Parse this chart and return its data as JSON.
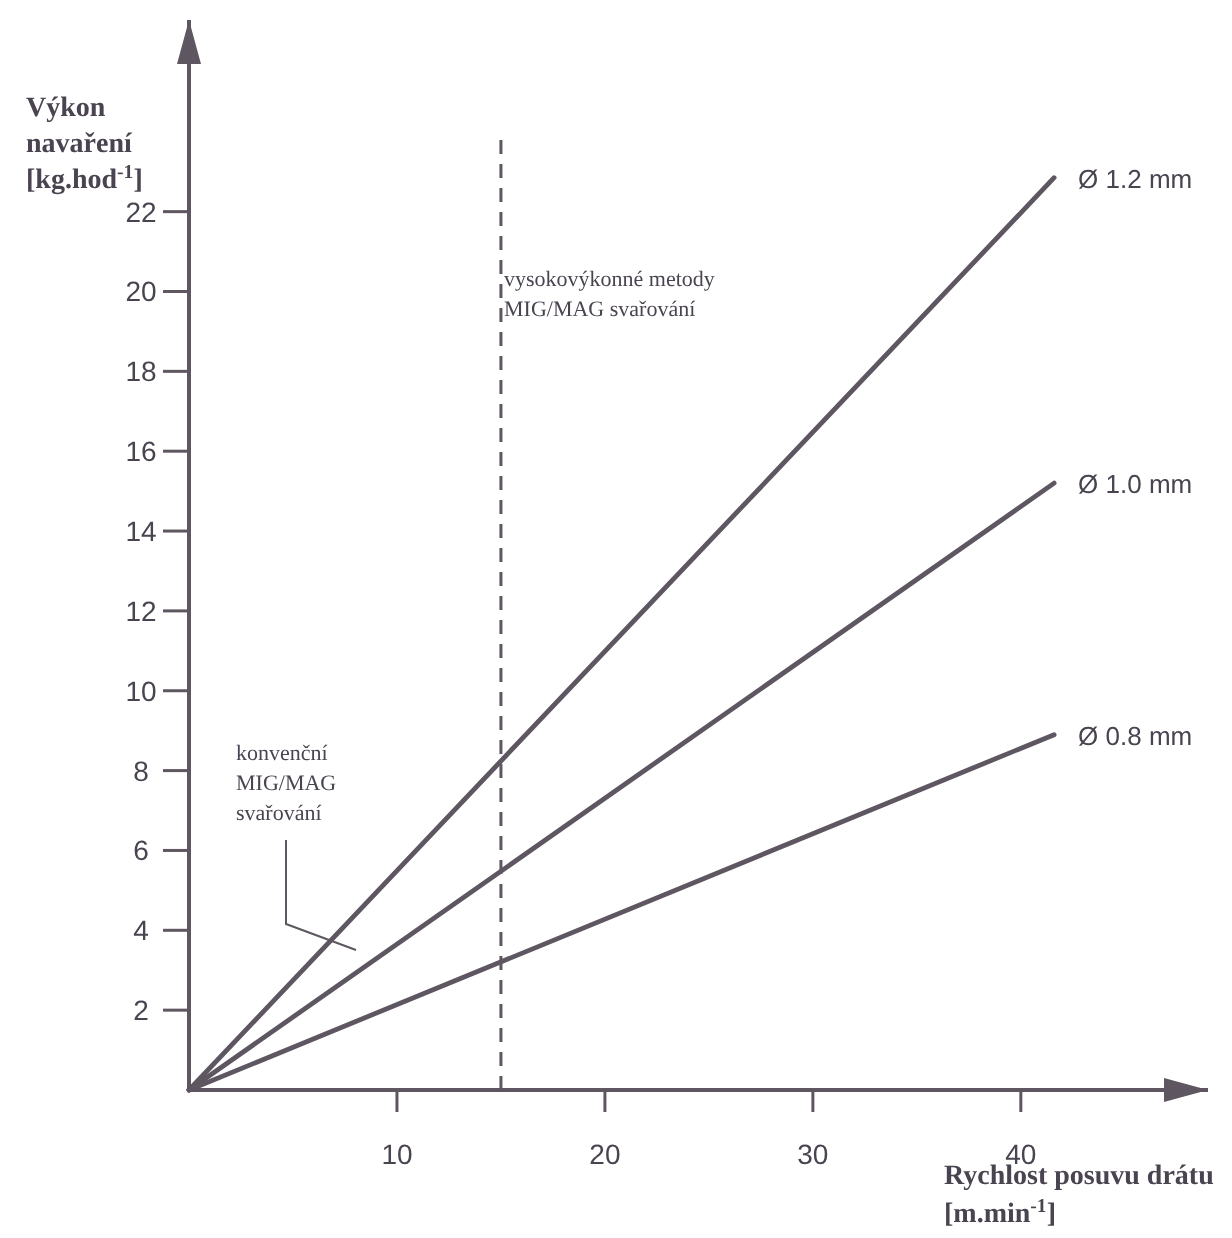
{
  "chart_data": {
    "type": "line",
    "xlabel": "Rychlost posuvu drátu\n[m.min$^{-1}$]",
    "ylabel": "Výkon\nnavaření\n[kg.hod$^{-1}$]",
    "xlim": [
      0,
      49
    ],
    "ylim": [
      0,
      26.8
    ],
    "xticks": [
      10,
      20,
      30,
      40
    ],
    "yticks": [
      2,
      4,
      6,
      8,
      10,
      12,
      14,
      16,
      18,
      20,
      22
    ],
    "grid": false,
    "legend": false,
    "marker": "none",
    "line_style": "solid",
    "x": [
      0,
      41.6
    ],
    "series": [
      {
        "name": "Ø 1.2 mm",
        "color": "#5e5660",
        "values": [
          0,
          22.85
        ]
      },
      {
        "name": "Ø 1.0 mm",
        "color": "#5e5660",
        "values": [
          0,
          15.2
        ]
      },
      {
        "name": "Ø 0.8 mm",
        "color": "#5e5660",
        "values": [
          0,
          8.9
        ]
      }
    ],
    "ref_lines": [
      {
        "axis": "x",
        "value": 15,
        "color": "#5e5660",
        "line_style": "dashed"
      }
    ],
    "annotations": [
      "konvenční\nMIG/MAG\nsvařování",
      "vysokovýkonné metody\nMIG/MAG svařování"
    ]
  }
}
